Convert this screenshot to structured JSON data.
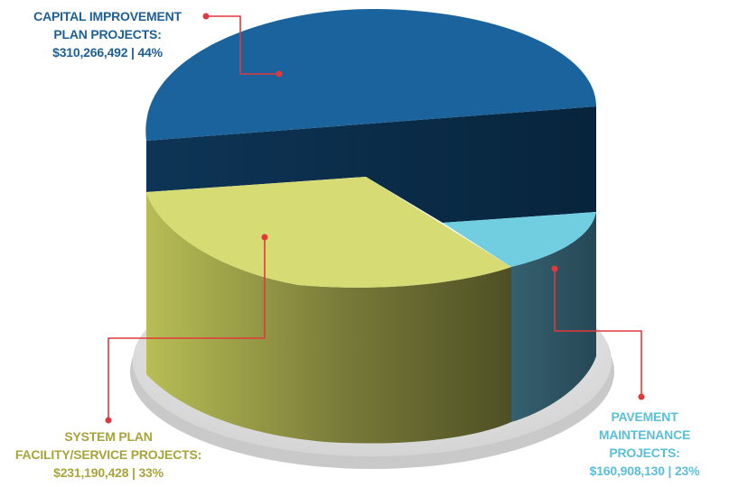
{
  "colors": {
    "capital": "#1a639d",
    "capital_dark": "#0b2b47",
    "system": "#d6db74",
    "system_dark": "#57592a",
    "pavement": "#71cde0",
    "pavement_dark": "#2f5563",
    "leader": "#e1393b",
    "base": "#dcdcdc"
  },
  "chart_data": {
    "type": "pie",
    "title": "",
    "slices": [
      {
        "key": "capital",
        "label_lines": [
          "CAPITAL IMPROVEMENT",
          "PLAN PROJECTS:",
          "$310,266,492 | 44%"
        ],
        "value": 310266492,
        "percent": 44
      },
      {
        "key": "system",
        "label_lines": [
          "SYSTEM PLAN",
          "FACILITY/SERVICE PROJECTS:",
          "$231,190,428 | 33%"
        ],
        "value": 231190428,
        "percent": 33
      },
      {
        "key": "pavement",
        "label_lines": [
          "PAVEMENT",
          "MAINTENANCE",
          "PROJECTS:",
          "$160,908,130 | 23%"
        ],
        "value": 160908130,
        "percent": 23
      }
    ]
  }
}
